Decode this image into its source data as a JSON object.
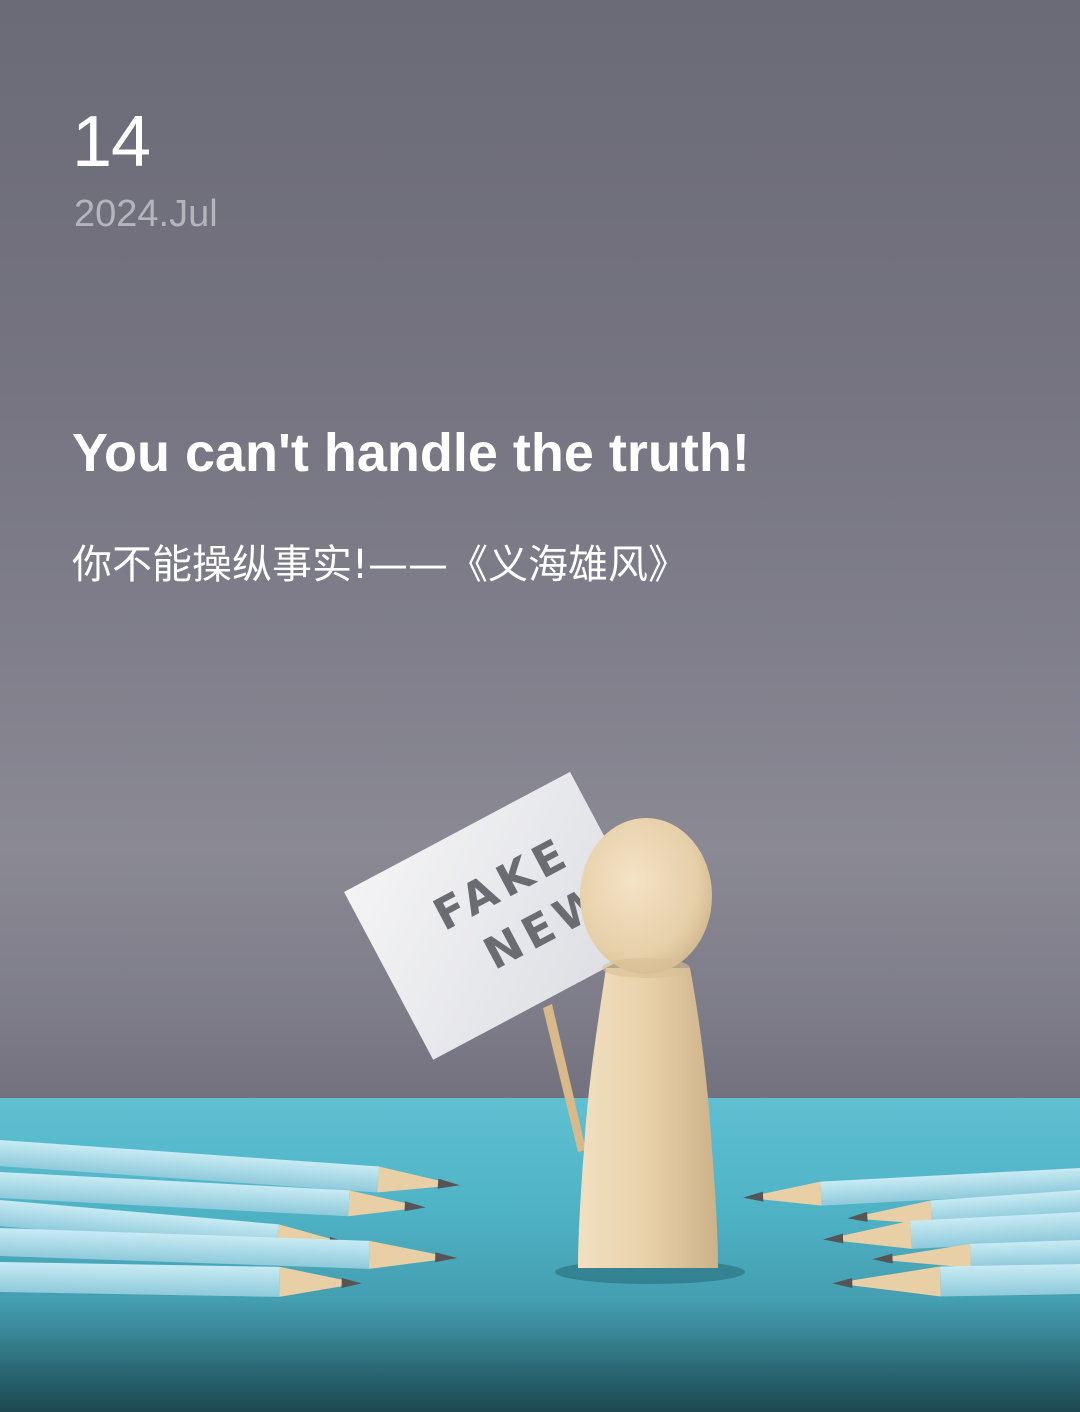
{
  "date": {
    "day": "14",
    "month_year": "2024.Jul"
  },
  "quote": {
    "english": "You can't handle the truth!",
    "chinese": "你不能操纵事实!——《义海雄风》"
  },
  "sign": {
    "line1": "FAKE",
    "line2": "NEWS"
  },
  "colors": {
    "background_gray": "#74737f",
    "table_teal": "#4fb3c6",
    "pencil_blue": "#a9d9e8",
    "wood": "#e6cfa8",
    "text_white": "#ffffff",
    "subtitle_gray": "#b5b4bd"
  }
}
